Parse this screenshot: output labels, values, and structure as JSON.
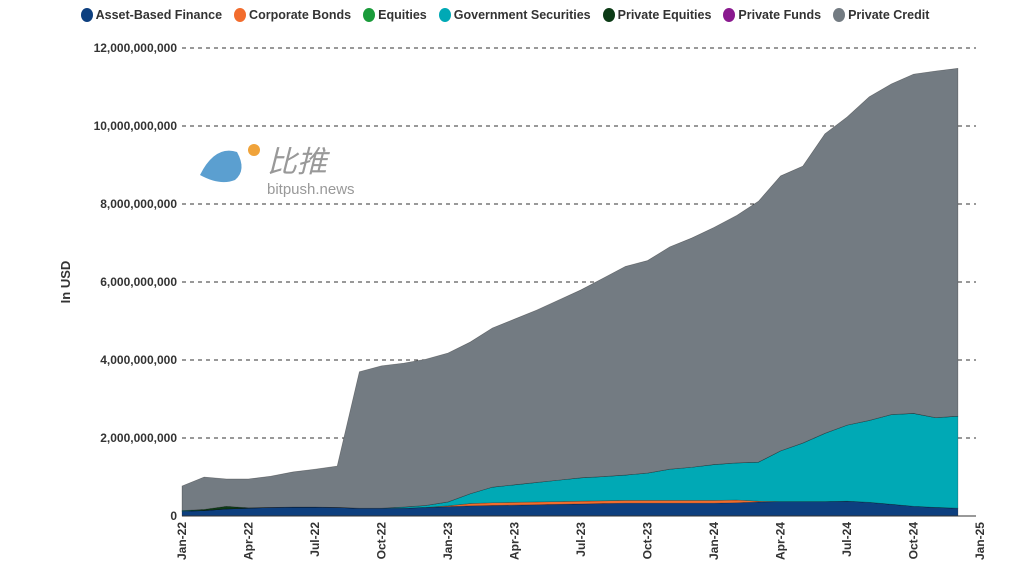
{
  "chart_data": {
    "type": "area",
    "stacked": true,
    "title": "",
    "xlabel": "",
    "ylabel": "In USD",
    "ylim": [
      0,
      12000000000
    ],
    "yticks": [
      0,
      2000000000,
      4000000000,
      6000000000,
      8000000000,
      10000000000,
      12000000000
    ],
    "ytick_labels": [
      "0",
      "2,000,000,000",
      "4,000,000,000",
      "6,000,000,000",
      "8,000,000,000",
      "10,000,000,000",
      "12,000,000,000"
    ],
    "xtick_labels": [
      "Jan-22",
      "Apr-22",
      "Jul-22",
      "Oct-22",
      "Jan-23",
      "Apr-23",
      "Jul-23",
      "Oct-23",
      "Jan-24",
      "Apr-24",
      "Jul-24",
      "Oct-24",
      "Jan-25"
    ],
    "grid": "horizontal dashed",
    "legend_placement": "top",
    "x": [
      "2022-01",
      "2022-02",
      "2022-03",
      "2022-04",
      "2022-05",
      "2022-06",
      "2022-07",
      "2022-08",
      "2022-09",
      "2022-10",
      "2022-11",
      "2022-12",
      "2023-01",
      "2023-02",
      "2023-03",
      "2023-04",
      "2023-05",
      "2023-06",
      "2023-07",
      "2023-08",
      "2023-09",
      "2023-10",
      "2023-11",
      "2023-12",
      "2024-01",
      "2024-02",
      "2024-03",
      "2024-04",
      "2024-05",
      "2024-06",
      "2024-07",
      "2024-08",
      "2024-09",
      "2024-10",
      "2024-11",
      "2024-12"
    ],
    "series": [
      {
        "name": "Asset-Based Finance",
        "color": "#0d3f7f",
        "values": [
          120000000.0,
          140000000.0,
          180000000.0,
          200000000.0,
          220000000.0,
          230000000.0,
          230000000.0,
          220000000.0,
          200000000.0,
          200000000.0,
          200000000.0,
          220000000.0,
          240000000.0,
          260000000.0,
          270000000.0,
          280000000.0,
          290000000.0,
          300000000.0,
          310000000.0,
          320000000.0,
          330000000.0,
          330000000.0,
          330000000.0,
          330000000.0,
          330000000.0,
          340000000.0,
          360000000.0,
          370000000.0,
          370000000.0,
          370000000.0,
          380000000.0,
          350000000.0,
          300000000.0,
          250000000.0,
          220000000.0,
          200000000.0
        ]
      },
      {
        "name": "Corporate Bonds",
        "color": "#f26c2d",
        "values": [
          0,
          0,
          0,
          0,
          0,
          0,
          0,
          0,
          0,
          0,
          0,
          0,
          20000000.0,
          60000000.0,
          70000000.0,
          70000000.0,
          70000000.0,
          70000000.0,
          70000000.0,
          70000000.0,
          70000000.0,
          70000000.0,
          70000000.0,
          70000000.0,
          70000000.0,
          70000000.0,
          20000000.0,
          0,
          0,
          0,
          0,
          0,
          0,
          0,
          0,
          0
        ]
      },
      {
        "name": "Equities",
        "color": "#1a9b3a",
        "values": [
          0,
          0,
          0,
          0,
          0,
          0,
          0,
          0,
          0,
          0,
          0,
          0,
          0,
          0,
          0,
          0,
          0,
          0,
          0,
          0,
          0,
          0,
          0,
          0,
          0,
          0,
          0,
          0,
          0,
          0,
          0,
          0,
          0,
          0,
          0,
          0
        ]
      },
      {
        "name": "Government Securities",
        "color": "#00a9b5",
        "values": [
          20000000.0,
          0,
          0,
          0,
          0,
          0,
          0,
          0,
          0,
          0,
          30000000.0,
          50000000.0,
          100000000.0,
          250000000.0,
          400000000.0,
          450000000.0,
          500000000.0,
          550000000.0,
          600000000.0,
          620000000.0,
          650000000.0,
          700000000.0,
          800000000.0,
          850000000.0,
          920000000.0,
          950000000.0,
          1000000000.0,
          1300000000.0,
          1500000000.0,
          1750000000.0,
          1950000000.0,
          2100000000.0,
          2300000000.0,
          2380000000.0,
          2300000000.0,
          2360000000.0
        ]
      },
      {
        "name": "Private Equities",
        "color": "#0c3b16",
        "values": [
          0,
          30000000.0,
          70000000.0,
          10000000.0,
          0,
          0,
          0,
          0,
          0,
          0,
          0,
          0,
          0,
          0,
          0,
          0,
          0,
          0,
          0,
          0,
          0,
          0,
          0,
          0,
          0,
          0,
          0,
          0,
          0,
          0,
          0,
          0,
          0,
          0,
          0,
          0
        ]
      },
      {
        "name": "Private Funds",
        "color": "#8a1a8f",
        "values": [
          0,
          0,
          0,
          0,
          0,
          0,
          0,
          0,
          0,
          0,
          0,
          0,
          0,
          0,
          0,
          0,
          0,
          0,
          0,
          0,
          0,
          0,
          0,
          0,
          0,
          0,
          0,
          0,
          0,
          0,
          0,
          0,
          0,
          0,
          0,
          0
        ]
      },
      {
        "name": "Private Credit",
        "color": "#737b82",
        "values": [
          630000000.0,
          830000000.0,
          700000000.0,
          740000000.0,
          800000000.0,
          900000000.0,
          970000000.0,
          1060000000.0,
          3500000000.0,
          3650000000.0,
          3690000000.0,
          3750000000.0,
          3820000000.0,
          3890000000.0,
          4080000000.0,
          4250000000.0,
          4420000000.0,
          4620000000.0,
          4820000000.0,
          5090000000.0,
          5350000000.0,
          5450000000.0,
          5700000000.0,
          5880000000.0,
          6080000000.0,
          6340000000.0,
          6690000000.0,
          7050000000.0,
          7100000000.0,
          7680000000.0,
          7900000000.0,
          8300000000.0,
          8480000000.0,
          8700000000.0,
          8890000000.0,
          8920000000.0
        ]
      }
    ]
  },
  "watermark": {
    "logo_text": "比推",
    "site": "bitpush.news"
  }
}
